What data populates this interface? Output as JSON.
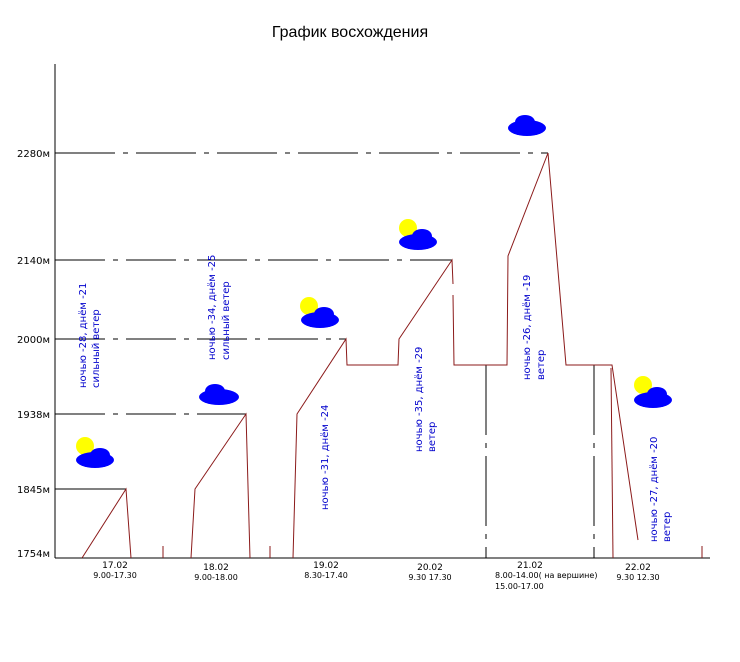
{
  "chart_data": {
    "type": "line",
    "title": "График восхождения",
    "y_ticks": [
      "1754м",
      "1845м",
      "1938м",
      "2000м",
      "2140м",
      "2280м"
    ],
    "y_values": [
      1754,
      1845,
      1938,
      2000,
      2140,
      2280
    ],
    "days": [
      {
        "date": "17.02",
        "time": "9.00-17.30",
        "weather": [
          "ночью -28, днём -21",
          "сильный ветер"
        ]
      },
      {
        "date": "18.02",
        "time": "9.00-18.00",
        "weather": [
          "ночью -34, днём -25",
          "сильный ветер"
        ]
      },
      {
        "date": "19.02",
        "time": "8.30-17.40",
        "weather": [
          "ночью -31, днём -24"
        ]
      },
      {
        "date": "20.02",
        "time": "9.30 17.30",
        "weather": [
          "ночью -35, днём -29",
          "ветер"
        ]
      },
      {
        "date": "21.02",
        "time": "8.00-14.00( на вершине)",
        "time2": "15.00-17.00",
        "weather": [
          "ночью -26, днём -19",
          "ветер"
        ]
      },
      {
        "date": "22.02",
        "time": "9.30 12.30",
        "weather": [
          "ночью -27, днём -20",
          "ветер"
        ]
      }
    ],
    "colors": {
      "profile": "#8b1a1a",
      "weather_text": "#0000cc",
      "cloud": "#0000ff",
      "sun": "#ffff00"
    }
  }
}
